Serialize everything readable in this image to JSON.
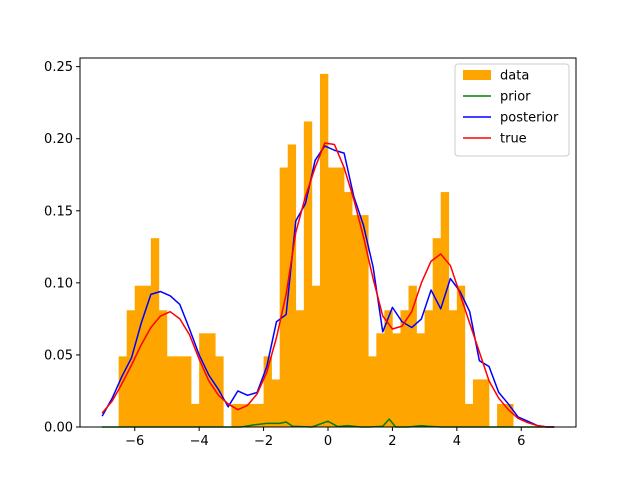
{
  "chart_data": {
    "type": "bar+line",
    "title": "",
    "xlabel": "",
    "ylabel": "",
    "xlim": [
      -7.7,
      7.7
    ],
    "ylim": [
      0,
      0.256
    ],
    "xticks": [
      -6,
      -4,
      -2,
      0,
      2,
      4,
      6
    ],
    "xtick_labels": [
      "−6",
      "−4",
      "−2",
      "0",
      "2",
      "4",
      "6"
    ],
    "yticks": [
      0.0,
      0.05,
      0.1,
      0.15,
      0.2,
      0.25
    ],
    "ytick_labels": [
      "0.00",
      "0.05",
      "0.10",
      "0.15",
      "0.20",
      "0.25"
    ],
    "grid": false,
    "legend": {
      "position": "top-right",
      "entries": [
        {
          "label": "data",
          "kind": "patch",
          "color": "#ffa500"
        },
        {
          "label": "prior",
          "kind": "line",
          "color": "#008000"
        },
        {
          "label": "posterior",
          "kind": "line",
          "color": "#0000ff"
        },
        {
          "label": "true",
          "kind": "line",
          "color": "#ff0000"
        }
      ]
    },
    "histogram": {
      "name": "data",
      "color": "#ffa500",
      "bins": [
        {
          "x0": -6.5,
          "x1": -6.25,
          "value": 0.049
        },
        {
          "x0": -6.25,
          "x1": -6.0,
          "value": 0.081
        },
        {
          "x0": -6.0,
          "x1": -5.75,
          "value": 0.098
        },
        {
          "x0": -5.75,
          "x1": -5.5,
          "value": 0.098
        },
        {
          "x0": -5.5,
          "x1": -5.25,
          "value": 0.131
        },
        {
          "x0": -5.25,
          "x1": -5.0,
          "value": 0.081
        },
        {
          "x0": -5.0,
          "x1": -4.75,
          "value": 0.049
        },
        {
          "x0": -4.75,
          "x1": -4.5,
          "value": 0.049
        },
        {
          "x0": -4.5,
          "x1": -4.25,
          "value": 0.049
        },
        {
          "x0": -4.25,
          "x1": -4.0,
          "value": 0.016
        },
        {
          "x0": -4.0,
          "x1": -3.75,
          "value": 0.065
        },
        {
          "x0": -3.75,
          "x1": -3.5,
          "value": 0.065
        },
        {
          "x0": -3.5,
          "x1": -3.25,
          "value": 0.049
        },
        {
          "x0": -3.25,
          "x1": -3.0,
          "value": 0.0
        },
        {
          "x0": -3.0,
          "x1": -2.75,
          "value": 0.016
        },
        {
          "x0": -2.75,
          "x1": -2.5,
          "value": 0.016
        },
        {
          "x0": -2.5,
          "x1": -2.25,
          "value": 0.016
        },
        {
          "x0": -2.25,
          "x1": -2.0,
          "value": 0.016
        },
        {
          "x0": -2.0,
          "x1": -1.75,
          "value": 0.049
        },
        {
          "x0": -1.75,
          "x1": -1.5,
          "value": 0.033
        },
        {
          "x0": -1.5,
          "x1": -1.25,
          "value": 0.18
        },
        {
          "x0": -1.25,
          "x1": -1.0,
          "value": 0.196
        },
        {
          "x0": -1.0,
          "x1": -0.75,
          "value": 0.081
        },
        {
          "x0": -0.75,
          "x1": -0.5,
          "value": 0.212
        },
        {
          "x0": -0.5,
          "x1": -0.25,
          "value": 0.098
        },
        {
          "x0": -0.25,
          "x1": 0.0,
          "value": 0.245
        },
        {
          "x0": 0.0,
          "x1": 0.25,
          "value": 0.18
        },
        {
          "x0": 0.25,
          "x1": 0.5,
          "value": 0.18
        },
        {
          "x0": 0.5,
          "x1": 0.75,
          "value": 0.163
        },
        {
          "x0": 0.75,
          "x1": 1.0,
          "value": 0.147
        },
        {
          "x0": 1.0,
          "x1": 1.25,
          "value": 0.147
        },
        {
          "x0": 1.25,
          "x1": 1.5,
          "value": 0.049
        },
        {
          "x0": 1.5,
          "x1": 1.75,
          "value": 0.065
        },
        {
          "x0": 1.75,
          "x1": 2.0,
          "value": 0.081
        },
        {
          "x0": 2.0,
          "x1": 2.25,
          "value": 0.065
        },
        {
          "x0": 2.25,
          "x1": 2.5,
          "value": 0.081
        },
        {
          "x0": 2.5,
          "x1": 2.75,
          "value": 0.098
        },
        {
          "x0": 2.75,
          "x1": 3.0,
          "value": 0.065
        },
        {
          "x0": 3.0,
          "x1": 3.25,
          "value": 0.081
        },
        {
          "x0": 3.25,
          "x1": 3.5,
          "value": 0.131
        },
        {
          "x0": 3.5,
          "x1": 3.75,
          "value": 0.163
        },
        {
          "x0": 3.75,
          "x1": 4.0,
          "value": 0.081
        },
        {
          "x0": 4.0,
          "x1": 4.25,
          "value": 0.098
        },
        {
          "x0": 4.25,
          "x1": 4.5,
          "value": 0.016
        },
        {
          "x0": 4.5,
          "x1": 4.75,
          "value": 0.033
        },
        {
          "x0": 4.75,
          "x1": 5.0,
          "value": 0.033
        },
        {
          "x0": 5.0,
          "x1": 5.25,
          "value": 0.0
        },
        {
          "x0": 5.25,
          "x1": 5.5,
          "value": 0.016
        },
        {
          "x0": 5.5,
          "x1": 5.75,
          "value": 0.016
        }
      ]
    },
    "series": [
      {
        "name": "prior",
        "color": "#008000",
        "x": [
          -7.0,
          -2.7,
          -2.3,
          -1.9,
          -1.5,
          -1.3,
          -1.1,
          -0.5,
          0.0,
          0.3,
          0.6,
          1.0,
          1.3,
          1.7,
          1.9,
          2.1,
          2.5,
          2.9,
          3.1,
          3.5,
          4.0,
          7.0
        ],
        "y": [
          0.0,
          0.0,
          0.0015,
          0.0025,
          0.0025,
          0.0035,
          0.0005,
          0.0,
          0.004,
          0.0003,
          0.001,
          0.0,
          0.0,
          0.0005,
          0.0055,
          0.0,
          0.0,
          0.001,
          0.0005,
          0.0,
          0.0,
          0.0
        ]
      },
      {
        "name": "posterior",
        "color": "#0000ff",
        "x": [
          -7.0,
          -6.7,
          -6.4,
          -6.1,
          -5.8,
          -5.5,
          -5.2,
          -4.9,
          -4.6,
          -4.3,
          -4.0,
          -3.7,
          -3.4,
          -3.1,
          -2.8,
          -2.5,
          -2.2,
          -1.9,
          -1.6,
          -1.3,
          -1.0,
          -0.7,
          -0.4,
          -0.1,
          0.2,
          0.5,
          0.8,
          1.1,
          1.4,
          1.7,
          2.0,
          2.3,
          2.6,
          2.9,
          3.2,
          3.5,
          3.8,
          4.1,
          4.4,
          4.7,
          5.0,
          5.3,
          5.6,
          5.9,
          6.2,
          6.5,
          6.8,
          7.0
        ],
        "y": [
          0.008,
          0.02,
          0.035,
          0.048,
          0.072,
          0.092,
          0.094,
          0.091,
          0.085,
          0.068,
          0.05,
          0.036,
          0.026,
          0.014,
          0.025,
          0.022,
          0.024,
          0.042,
          0.073,
          0.078,
          0.143,
          0.155,
          0.185,
          0.195,
          0.192,
          0.19,
          0.16,
          0.14,
          0.111,
          0.066,
          0.083,
          0.073,
          0.069,
          0.075,
          0.095,
          0.082,
          0.103,
          0.094,
          0.08,
          0.046,
          0.042,
          0.024,
          0.016,
          0.007,
          0.004,
          0.001,
          0.0,
          0.0
        ]
      },
      {
        "name": "true",
        "color": "#ff0000",
        "x": [
          -7.0,
          -6.7,
          -6.4,
          -6.1,
          -5.8,
          -5.5,
          -5.2,
          -4.9,
          -4.6,
          -4.3,
          -4.0,
          -3.7,
          -3.4,
          -3.1,
          -2.8,
          -2.5,
          -2.2,
          -1.9,
          -1.6,
          -1.3,
          -1.0,
          -0.7,
          -0.4,
          -0.1,
          0.2,
          0.5,
          0.8,
          1.1,
          1.4,
          1.7,
          2.0,
          2.3,
          2.6,
          2.9,
          3.2,
          3.5,
          3.8,
          4.1,
          4.4,
          4.7,
          5.0,
          5.3,
          5.6,
          5.9,
          6.2,
          6.5,
          6.8,
          7.0
        ],
        "y": [
          0.01,
          0.018,
          0.03,
          0.043,
          0.057,
          0.069,
          0.077,
          0.08,
          0.075,
          0.064,
          0.047,
          0.032,
          0.022,
          0.016,
          0.012,
          0.015,
          0.023,
          0.038,
          0.062,
          0.092,
          0.135,
          0.16,
          0.18,
          0.197,
          0.196,
          0.18,
          0.158,
          0.132,
          0.103,
          0.077,
          0.068,
          0.07,
          0.08,
          0.1,
          0.115,
          0.12,
          0.112,
          0.092,
          0.072,
          0.052,
          0.032,
          0.02,
          0.012,
          0.006,
          0.003,
          0.001,
          0.0,
          0.0
        ]
      }
    ]
  }
}
